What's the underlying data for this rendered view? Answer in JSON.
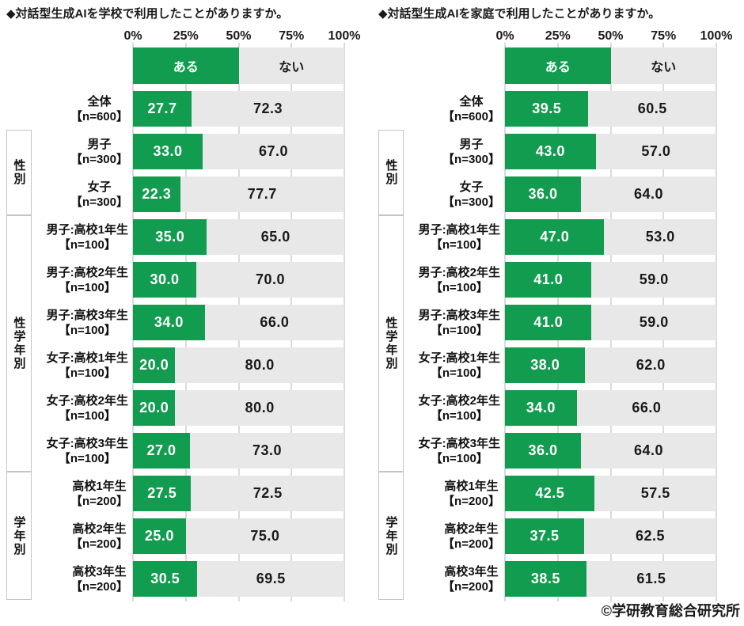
{
  "colors": {
    "bar_yes": "#129c4f",
    "bar_no": "#e8e8e8",
    "tick": "#b5b5b5"
  },
  "axis": {
    "ticks": [
      "0%",
      "25%",
      "50%",
      "75%",
      "100%"
    ]
  },
  "copyright": "©学研教育総合研究所",
  "chart_data": [
    {
      "type": "bar",
      "orientation": "horizontal",
      "stacked": true,
      "title": "◆対話型生成AIを学校で利用したことがありますか。",
      "xlim": [
        0,
        100
      ],
      "legend_position": "top",
      "grid": "vertical-ticks",
      "series": [
        {
          "name": "ある",
          "values": [
            27.7,
            33.0,
            22.3,
            35.0,
            30.0,
            34.0,
            20.0,
            20.0,
            27.0,
            27.5,
            25.0,
            30.5
          ]
        },
        {
          "name": "ない",
          "values": [
            72.3,
            67.0,
            77.7,
            65.0,
            70.0,
            66.0,
            80.0,
            80.0,
            73.0,
            72.5,
            75.0,
            69.5
          ]
        }
      ],
      "categories": [
        {
          "label": "全体",
          "n": "【n=600】"
        },
        {
          "label": "男子",
          "n": "【n=300】"
        },
        {
          "label": "女子",
          "n": "【n=300】"
        },
        {
          "label": "男子:高校1年生",
          "n": "【n=100】"
        },
        {
          "label": "男子:高校2年生",
          "n": "【n=100】"
        },
        {
          "label": "男子:高校3年生",
          "n": "【n=100】"
        },
        {
          "label": "女子:高校1年生",
          "n": "【n=100】"
        },
        {
          "label": "女子:高校2年生",
          "n": "【n=100】"
        },
        {
          "label": "女子:高校3年生",
          "n": "【n=100】"
        },
        {
          "label": "高校1年生",
          "n": "【n=200】"
        },
        {
          "label": "高校2年生",
          "n": "【n=200】"
        },
        {
          "label": "高校3年生",
          "n": "【n=200】"
        }
      ],
      "groups": [
        {
          "label": "性別",
          "start": 1,
          "count": 2
        },
        {
          "label": "性学年別",
          "start": 3,
          "count": 6
        },
        {
          "label": "学年別",
          "start": 9,
          "count": 3
        }
      ]
    },
    {
      "type": "bar",
      "orientation": "horizontal",
      "stacked": true,
      "title": "◆対話型生成AIを家庭で利用したことがありますか。",
      "xlim": [
        0,
        100
      ],
      "legend_position": "top",
      "grid": "vertical-ticks",
      "series": [
        {
          "name": "ある",
          "values": [
            39.5,
            43.0,
            36.0,
            47.0,
            41.0,
            41.0,
            38.0,
            34.0,
            36.0,
            42.5,
            37.5,
            38.5
          ]
        },
        {
          "name": "ない",
          "values": [
            60.5,
            57.0,
            64.0,
            53.0,
            59.0,
            59.0,
            62.0,
            66.0,
            64.0,
            57.5,
            62.5,
            61.5
          ]
        }
      ],
      "categories": [
        {
          "label": "全体",
          "n": "【n=600】"
        },
        {
          "label": "男子",
          "n": "【n=300】"
        },
        {
          "label": "女子",
          "n": "【n=300】"
        },
        {
          "label": "男子:高校1年生",
          "n": "【n=100】"
        },
        {
          "label": "男子:高校2年生",
          "n": "【n=100】"
        },
        {
          "label": "男子:高校3年生",
          "n": "【n=100】"
        },
        {
          "label": "女子:高校1年生",
          "n": "【n=100】"
        },
        {
          "label": "女子:高校2年生",
          "n": "【n=100】"
        },
        {
          "label": "女子:高校3年生",
          "n": "【n=100】"
        },
        {
          "label": "高校1年生",
          "n": "【n=200】"
        },
        {
          "label": "高校2年生",
          "n": "【n=200】"
        },
        {
          "label": "高校3年生",
          "n": "【n=200】"
        }
      ],
      "groups": [
        {
          "label": "性別",
          "start": 1,
          "count": 2
        },
        {
          "label": "性学年別",
          "start": 3,
          "count": 6
        },
        {
          "label": "学年別",
          "start": 9,
          "count": 3
        }
      ]
    }
  ]
}
